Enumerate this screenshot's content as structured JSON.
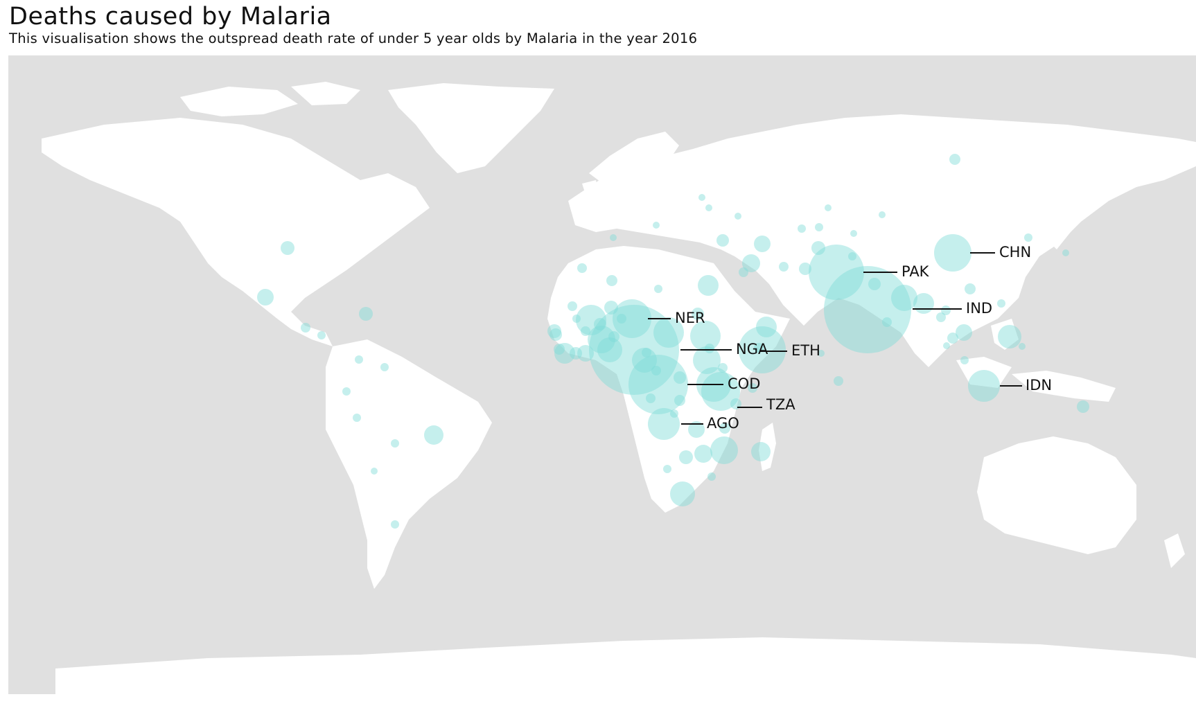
{
  "title": "Deaths caused by Malaria",
  "subtitle": "This visualisation shows the outspread death rate of under 5 year olds by Malaria in the year 2016",
  "colors": {
    "ocean": "#e0e0e0",
    "land": "#ffffff",
    "bubble": "#7fdcd6"
  },
  "map": {
    "projection": "equirectangular",
    "marker": "circle",
    "size_encodes": "deaths of under 5 year olds by Malaria, 2016"
  },
  "labels": [
    {
      "code": "CHN"
    },
    {
      "code": "PAK"
    },
    {
      "code": "IND"
    },
    {
      "code": "NER"
    },
    {
      "code": "NGA"
    },
    {
      "code": "ETH"
    },
    {
      "code": "COD"
    },
    {
      "code": "TZA"
    },
    {
      "code": "AGO"
    },
    {
      "code": "IDN"
    }
  ]
}
